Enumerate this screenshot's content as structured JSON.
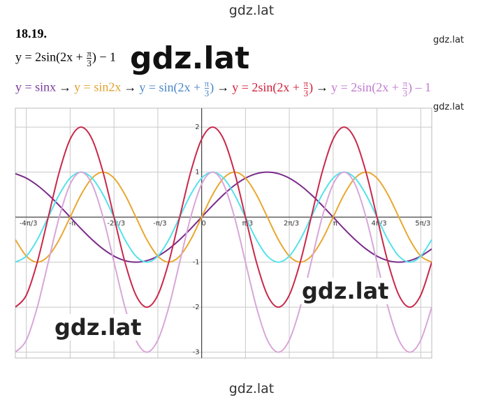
{
  "header": {
    "number": "18.19.",
    "equation": {
      "before": "y = 2sin(2x + ",
      "num": "π",
      "den": "3",
      "after": ") − 1"
    },
    "arrow": "→",
    "chain": [
      {
        "text": "y = sinx",
        "color": "#7a3a9c"
      },
      {
        "text": "y = sin2x",
        "color": "#e0a030"
      },
      {
        "before": "y = sin(2x + ",
        "num": "π",
        "den": "3",
        "after": ")",
        "color": "#4a86c8"
      },
      {
        "before": "y = 2sin(2x + ",
        "num": "π",
        "den": "3",
        "after": ")",
        "color": "#d0203a"
      },
      {
        "before": "y = 2sin(2x + ",
        "num": "π",
        "den": "3",
        "after": ") – 1",
        "color": "#c07ad0"
      }
    ]
  },
  "watermarks": [
    "gdz.lat",
    "gdz.lat",
    "gdz.lat",
    "gdz.lat",
    "gdz.lat",
    "gdz.lat",
    "gdz.lat"
  ],
  "chart_data": {
    "type": "line",
    "x": [
      -4.451,
      -4.189,
      -3.927,
      -3.665,
      -3.403,
      -3.142,
      -2.88,
      -2.618,
      -2.356,
      -2.094,
      -1.833,
      -1.571,
      -1.309,
      -1.047,
      -0.785,
      -0.524,
      -0.262,
      0,
      0.262,
      0.524,
      0.785,
      1.047,
      1.309,
      1.571,
      1.833,
      2.094,
      2.356,
      2.618,
      2.88,
      3.142,
      3.403,
      3.665,
      3.927,
      4.189,
      4.451,
      4.712,
      4.974,
      5.236,
      5.498
    ],
    "series": [
      {
        "color": "#7a2a8a",
        "values": [
          0.966,
          0.866,
          0.707,
          0.5,
          0.259,
          0,
          -0.259,
          -0.5,
          -0.707,
          -0.866,
          -0.966,
          -1,
          -0.966,
          -0.866,
          -0.707,
          -0.5,
          -0.259,
          0,
          0.259,
          0.5,
          0.707,
          0.866,
          0.966,
          1,
          0.966,
          0.866,
          0.707,
          0.5,
          0.259,
          0,
          -0.259,
          -0.5,
          -0.707,
          -0.866,
          -0.966,
          -1,
          -0.966,
          -0.866,
          -0.707
        ]
      },
      {
        "color": "#e8a830",
        "values": [
          -0.5,
          -0.866,
          -1,
          -0.866,
          -0.5,
          0,
          0.5,
          0.866,
          1,
          0.866,
          0.5,
          0,
          -0.5,
          -0.866,
          -1,
          -0.866,
          -0.5,
          0,
          0.5,
          0.866,
          1,
          0.866,
          0.5,
          0,
          -0.5,
          -0.866,
          -1,
          -0.866,
          -0.5,
          0,
          0.5,
          0.866,
          1,
          0.866,
          0.5,
          0,
          -0.5,
          -0.866,
          -1
        ]
      },
      {
        "color": "#55e2ea",
        "values": [
          -1,
          -0.866,
          -0.5,
          0,
          0.5,
          0.866,
          1,
          0.866,
          0.5,
          0,
          -0.5,
          -0.866,
          -1,
          -0.866,
          -0.5,
          0,
          0.5,
          0.866,
          1,
          0.866,
          0.5,
          0,
          -0.5,
          -0.866,
          -1,
          -0.866,
          -0.5,
          0,
          0.5,
          0.866,
          1,
          0.866,
          0.5,
          0,
          -0.5,
          -0.866,
          -1,
          -0.866,
          -0.5
        ]
      },
      {
        "color": "#c8284a",
        "values": [
          -2,
          -1.732,
          -1,
          0,
          1,
          1.732,
          2,
          1.732,
          1,
          0,
          -1,
          -1.732,
          -2,
          -1.732,
          -1,
          0,
          1,
          1.732,
          2,
          1.732,
          1,
          0,
          -1,
          -1.732,
          -2,
          -1.732,
          -1,
          0,
          1,
          1.732,
          2,
          1.732,
          1,
          0,
          -1,
          -1.732,
          -2,
          -1.732,
          -1
        ]
      },
      {
        "color": "#d8a6d8",
        "values": [
          -3,
          -2.732,
          -2,
          -1,
          0,
          0.732,
          1,
          0.732,
          0,
          -1,
          -2,
          -2.732,
          -3,
          -2.732,
          -2,
          -1,
          0,
          0.732,
          1,
          0.732,
          0,
          -1,
          -2,
          -2.732,
          -3,
          -2.732,
          -2,
          -1,
          0,
          0.732,
          1,
          0.732,
          0,
          -1,
          -2,
          -2.732,
          -3,
          -2.732,
          -2
        ]
      }
    ],
    "xlim": [
      -4.451,
      5.498
    ],
    "ylim": [
      -3.13,
      2.42
    ],
    "xticks": [
      {
        "value": -4.189,
        "label": "-4π/3"
      },
      {
        "value": -3.142,
        "label": "-π"
      },
      {
        "value": -2.094,
        "label": "-2π/3"
      },
      {
        "value": -1.047,
        "label": "-π/3"
      },
      0,
      {
        "value": 1.047,
        "label": "π/3"
      },
      {
        "value": 2.094,
        "label": "2π/3"
      },
      {
        "value": 3.142,
        "label": "π"
      },
      {
        "value": 4.189,
        "label": "4π/3"
      },
      {
        "value": 5.236,
        "label": "5π/3"
      }
    ],
    "yticks": [
      -3,
      -2,
      -1,
      1,
      2
    ],
    "grid": true
  }
}
